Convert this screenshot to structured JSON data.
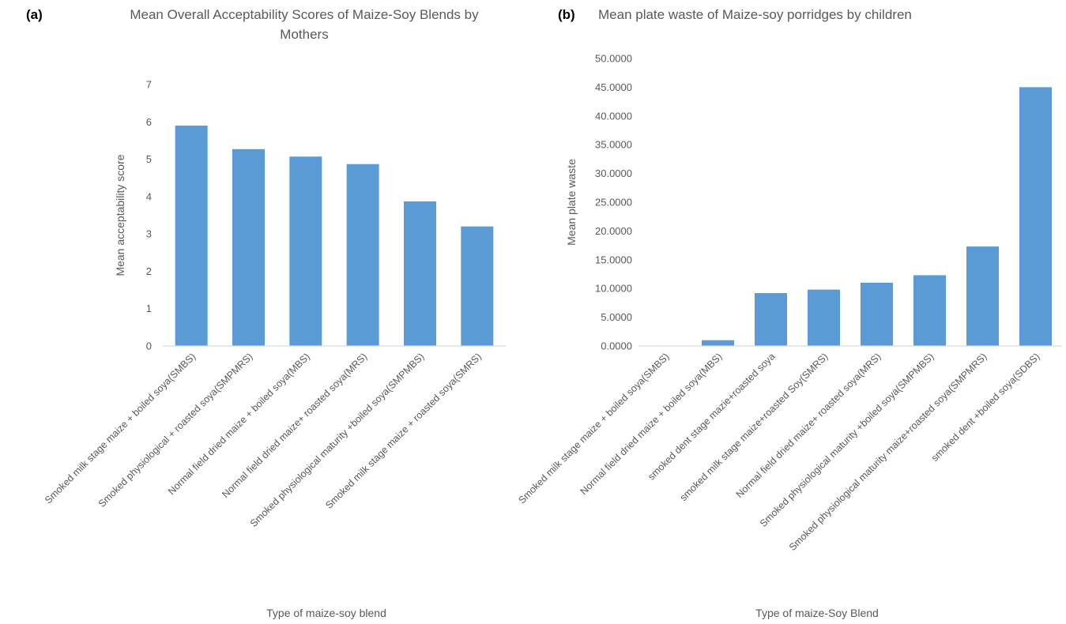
{
  "chart_data": [
    {
      "panel_label": "(a)",
      "type": "bar",
      "title": [
        "Mean Overall Acceptability Scores of Maize-Soy Blends by",
        "Mothers"
      ],
      "xlabel": "Type of maize-soy blend",
      "ylabel": "Mean acceptability score",
      "ylim": [
        0,
        7
      ],
      "yticks": [
        0,
        1,
        2,
        3,
        4,
        5,
        6,
        7
      ],
      "ytick_labels": [
        "0",
        "1",
        "2",
        "3",
        "4",
        "5",
        "6",
        "7"
      ],
      "categories": [
        "Smoked milk stage maize  + boiled soya(SMBS)",
        "Smoked physiological + roasted soya(SMPMRS)",
        "Normal field dried maize + boiled soya(MBS)",
        "Normal field dried maize+ roasted soya(MRS)",
        "Smoked physiological maturity +boiled soya(SMPMBS)",
        "Smoked milk stage maize + roasted soya(SMRS)"
      ],
      "values": [
        5.9,
        5.27,
        5.07,
        4.87,
        3.87,
        3.2
      ],
      "grid": false,
      "bar_color": "#5b9bd5"
    },
    {
      "panel_label": "(b)",
      "type": "bar",
      "title": [
        "Mean plate waste of Maize-soy porridges by children"
      ],
      "xlabel": "Type of maize-Soy Blend",
      "ylabel": "Mean plate waste",
      "ylim": [
        0,
        50
      ],
      "yticks": [
        0,
        5,
        10,
        15,
        20,
        25,
        30,
        35,
        40,
        45,
        50
      ],
      "ytick_labels": [
        "0.0000",
        "5.0000",
        "10.0000",
        "15.0000",
        "20.0000",
        "25.0000",
        "30.0000",
        "35.0000",
        "40.0000",
        "45.0000",
        "50.0000"
      ],
      "categories": [
        "Smoked milk stage maize  + boiled soya(SMBS)",
        "Normal field dried maize + boiled soya(MBS)",
        "smoked dent stage mazie+roasted soya",
        "smoked milk stage maize+roasted Soy(SMRS)",
        "Normal field dried maize+ roasted soya(MRS)",
        "Smoked physiological maturity +boiled soya(SMPMBS)",
        "Smoked physiological maturity maize+roasted soya(SMPMRS)",
        "smoked dent  +boiled soya(SDBS)"
      ],
      "values": [
        0,
        1.0,
        9.2,
        9.8,
        11.0,
        12.3,
        17.3,
        45.0
      ],
      "grid": false,
      "bar_color": "#5b9bd5"
    }
  ]
}
